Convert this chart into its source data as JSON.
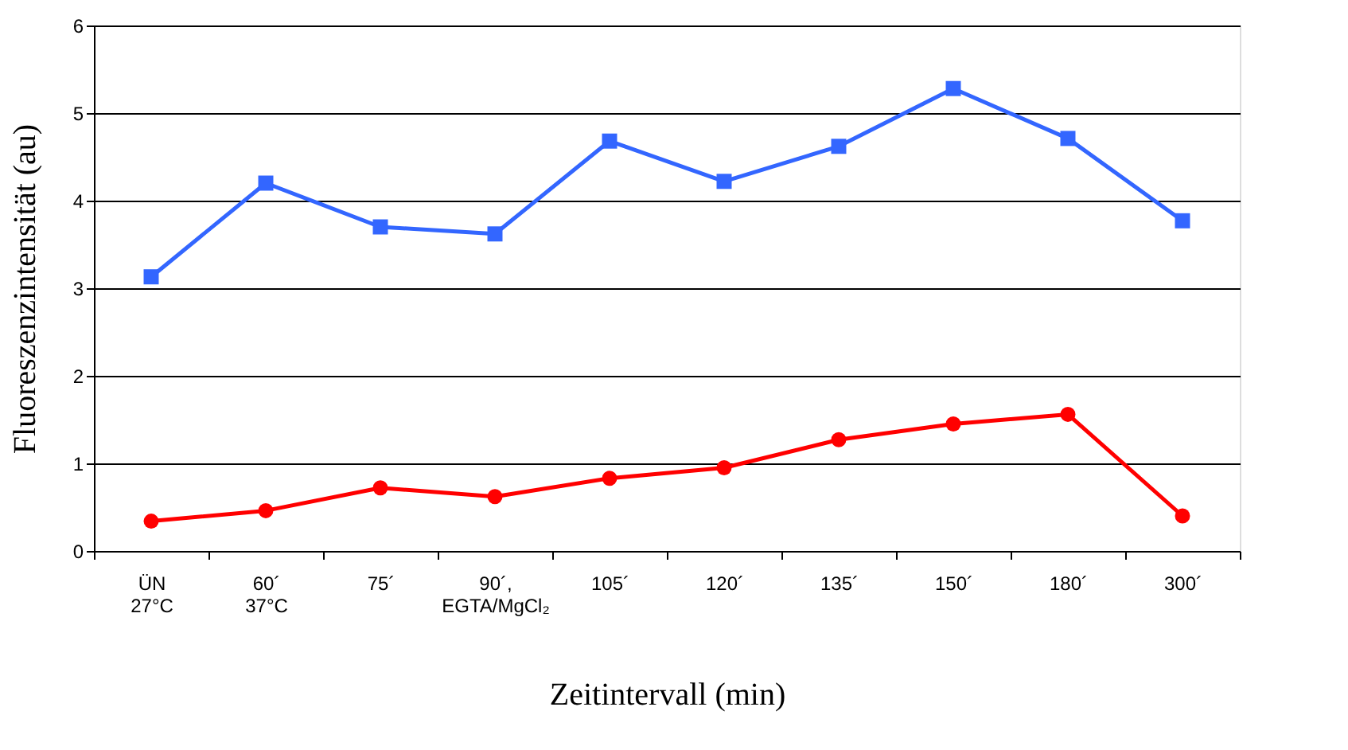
{
  "chart_data": {
    "type": "line",
    "xlabel": "Zeitintervall (min)",
    "ylabel": "Fluoreszenzintensität (au)",
    "categories": [
      "ÜN\n27°C",
      "60´\n37°C",
      "75´",
      "90´,\nEGTA/MgCl₂",
      "105´",
      "120´",
      "135´",
      "150´",
      "180´",
      "300´"
    ],
    "series": [
      {
        "color": "#3366ff",
        "marker": "square",
        "values": [
          3.13,
          4.2,
          3.7,
          3.62,
          4.68,
          4.22,
          4.62,
          5.28,
          4.71,
          3.77
        ]
      },
      {
        "color": "#ff0000",
        "marker": "circle",
        "values": [
          0.34,
          0.46,
          0.72,
          0.62,
          0.83,
          0.95,
          1.27,
          1.45,
          1.56,
          0.4
        ]
      }
    ],
    "ylim": [
      0,
      6
    ],
    "yticks": [
      0,
      1,
      2,
      3,
      4,
      5,
      6
    ],
    "grid": "y",
    "line_style": "solid"
  }
}
